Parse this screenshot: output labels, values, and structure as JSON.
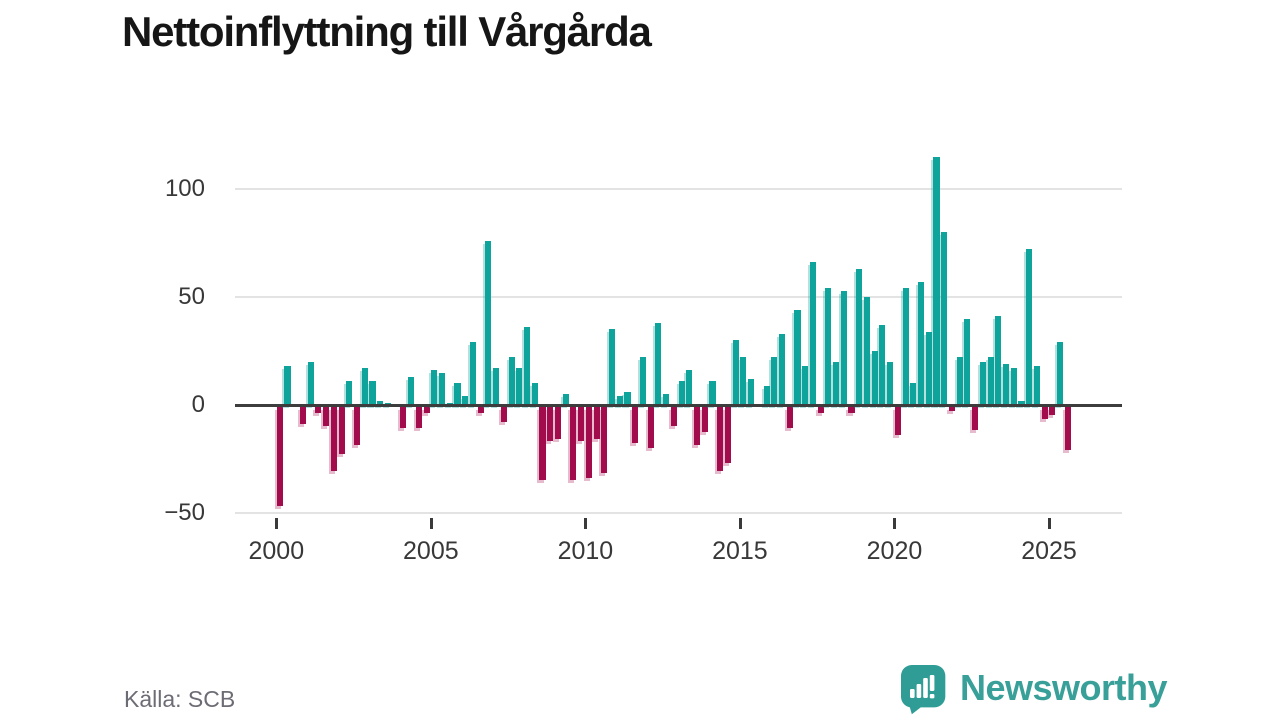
{
  "title": "Nettoinflyttning till Vårgårda",
  "footer": {
    "source_label": "Källa: SCB",
    "brand": "Newsworthy"
  },
  "colors": {
    "positive": "#0ea39b",
    "negative": "#a30c4c",
    "zero_axis": "#3d3d3d",
    "grid": "#e3e3e3",
    "tick_text": "#383838",
    "muted_text": "#6c6c75",
    "brand_teal": "#38a098",
    "title_text": "#161616"
  },
  "chart_data": {
    "type": "bar",
    "title": "Nettoinflyttning till Vårgårda",
    "xlabel": "",
    "ylabel": "",
    "frequency": "quarterly",
    "start_period": "2000 Q1",
    "end_period": "2025 Q3",
    "x_tick_labels": [
      "2000",
      "2005",
      "2010",
      "2015",
      "2020",
      "2025"
    ],
    "y_ticks": [
      100,
      50,
      0,
      -50
    ],
    "y_tick_labels": [
      "100",
      "50",
      "0",
      "−50"
    ],
    "ylim": [
      -50,
      115
    ],
    "grid": "horizontal",
    "legend": "none",
    "values": [
      -46,
      18,
      0,
      -8,
      20,
      -3,
      -9,
      -30,
      -22,
      11,
      -18,
      17,
      11,
      2,
      1,
      0,
      -10,
      13,
      -10,
      -3,
      16,
      15,
      1,
      10,
      4,
      29,
      -3,
      76,
      17,
      -7,
      22,
      17,
      36,
      10,
      -34,
      -16,
      -15,
      5,
      -34,
      -16,
      -33,
      -15,
      -31,
      35,
      4,
      6,
      -17,
      22,
      -19,
      38,
      5,
      -9,
      11,
      16,
      -18,
      -12,
      11,
      -30,
      -26,
      30,
      22,
      12,
      0,
      9,
      22,
      33,
      -10,
      44,
      18,
      66,
      -3,
      54,
      20,
      53,
      -3,
      63,
      50,
      25,
      37,
      20,
      -13,
      54,
      10,
      57,
      34,
      115,
      80,
      -2,
      22,
      40,
      -11,
      20,
      22,
      41,
      19,
      17,
      2,
      72,
      18,
      -6,
      -4,
      29,
      -20
    ]
  }
}
